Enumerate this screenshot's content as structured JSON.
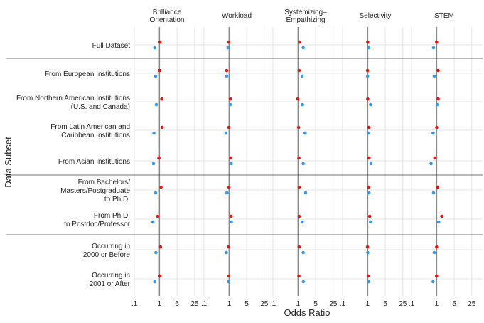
{
  "chart_data": {
    "type": "scatter",
    "xlabel": "Odds Ratio",
    "ylabel": "Data Subset",
    "x_scale": "log",
    "xlim": [
      0.1,
      40
    ],
    "x_ticks": [
      0.1,
      1,
      5,
      25
    ],
    "x_tick_labels": [
      ".1",
      "1",
      "5",
      "25"
    ],
    "reference_line_x": 1,
    "grid": true,
    "legend": "none",
    "colors": {
      "red_series": "#ee1111",
      "blue_series": "#3399ee",
      "reference_line": "#888888",
      "separator": "#444444",
      "grid": "#e5e5e5"
    },
    "panels": [
      {
        "title": [
          "Brilliance",
          "Orientation"
        ]
      },
      {
        "title": [
          "Workload"
        ]
      },
      {
        "title": [
          "Systemizing–",
          "Empathizing"
        ]
      },
      {
        "title": [
          "Selectivity"
        ]
      },
      {
        "title": [
          "STEM"
        ]
      }
    ],
    "rows": [
      {
        "label": [
          "Full Dataset"
        ]
      },
      {
        "label": [
          "From European Institutions"
        ]
      },
      {
        "label": [
          "From Northern American Institutions",
          "(U.S. and Canada)"
        ]
      },
      {
        "label": [
          "From Latin American and",
          "Caribbean Institutions"
        ]
      },
      {
        "label": [
          "From Asian Institutions"
        ]
      },
      {
        "label": [
          "From Bachelors/",
          "Masters/Postgraduate",
          "to Ph.D."
        ]
      },
      {
        "label": [
          "From Ph.D.",
          "to Postdoc/Professor"
        ]
      },
      {
        "label": [
          "Occurring in",
          "2000 or Before"
        ]
      },
      {
        "label": [
          "Occurring in",
          "2001 or After"
        ]
      }
    ],
    "row_groups_separated_after": [
      0,
      4,
      6
    ],
    "series": [
      {
        "color": "#ee1111",
        "values": [
          [
            1.05,
            0.97,
            1.15,
            1.0,
            1.0
          ],
          [
            1.0,
            0.8,
            1.1,
            0.98,
            1.15
          ],
          [
            1.25,
            1.12,
            0.98,
            1.0,
            1.15
          ],
          [
            1.28,
            0.98,
            1.05,
            1.12,
            1.0
          ],
          [
            0.95,
            1.15,
            1.08,
            1.12,
            0.85
          ],
          [
            1.15,
            0.98,
            1.1,
            1.08,
            1.1
          ],
          [
            0.85,
            1.18,
            1.1,
            1.2,
            1.6
          ],
          [
            1.1,
            0.92,
            1.1,
            0.98,
            1.0
          ],
          [
            1.05,
            0.97,
            1.08,
            1.05,
            1.0
          ]
        ]
      },
      {
        "color": "#3399ee",
        "values": [
          [
            0.65,
            0.9,
            1.6,
            1.1,
            0.75
          ],
          [
            0.7,
            0.8,
            1.45,
            0.98,
            0.8
          ],
          [
            0.75,
            1.12,
            1.5,
            1.3,
            1.05
          ],
          [
            0.6,
            0.75,
            1.9,
            1.05,
            0.72
          ],
          [
            0.58,
            1.22,
            1.6,
            1.35,
            0.6
          ],
          [
            0.7,
            0.82,
            2.0,
            1.12,
            0.75
          ],
          [
            0.55,
            1.22,
            1.45,
            1.3,
            1.2
          ],
          [
            0.72,
            0.78,
            1.6,
            1.0,
            0.8
          ],
          [
            0.65,
            0.95,
            1.62,
            1.1,
            0.72
          ]
        ]
      }
    ]
  }
}
